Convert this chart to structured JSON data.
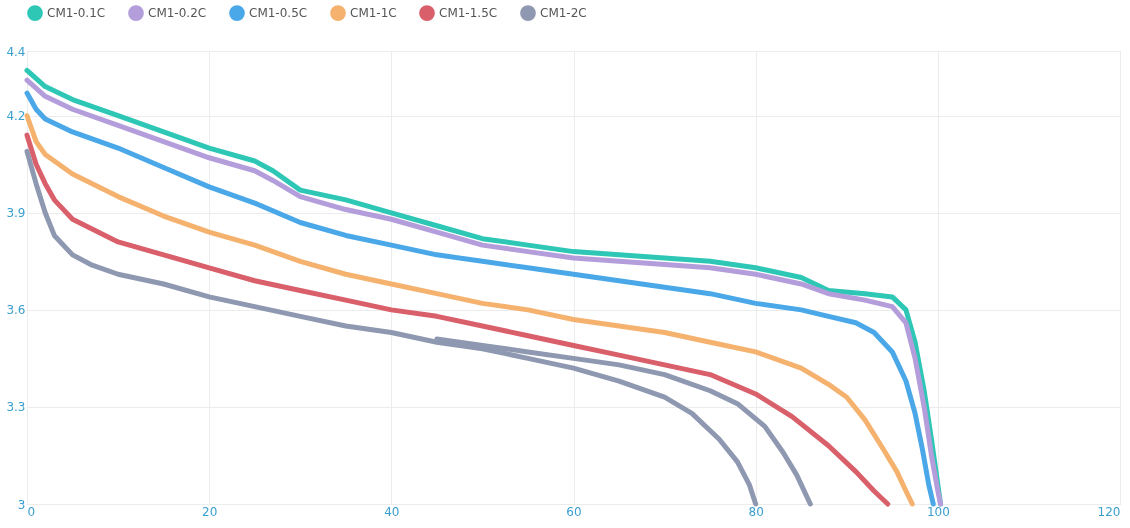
{
  "chart_data": {
    "type": "line",
    "legend": "top",
    "grid": true,
    "marker": "none",
    "line_style": "solid",
    "xlim": [
      0,
      120
    ],
    "xticks": [
      0,
      20,
      40,
      60,
      80,
      100,
      120
    ],
    "ylim": [
      3,
      4.4
    ],
    "yticks": [
      {
        "value": 3,
        "label": "3"
      },
      3.3,
      3.6,
      3.9,
      4.2,
      4.4
    ],
    "series": [
      {
        "name": "CM1-0.1C",
        "color": "#2ec7b6",
        "x": [
          0,
          2,
          5,
          10,
          15,
          20,
          25,
          27,
          30,
          35,
          40,
          45,
          50,
          55,
          60,
          65,
          70,
          75,
          80,
          85,
          88,
          92,
          95,
          96.5,
          97.5,
          98.5,
          99.3,
          100,
          100.3
        ],
        "values": [
          4.34,
          4.29,
          4.25,
          4.2,
          4.15,
          4.1,
          4.06,
          4.03,
          3.97,
          3.94,
          3.9,
          3.86,
          3.82,
          3.8,
          3.78,
          3.77,
          3.76,
          3.75,
          3.73,
          3.7,
          3.66,
          3.65,
          3.64,
          3.6,
          3.5,
          3.35,
          3.2,
          3.06,
          3.0
        ]
      },
      {
        "name": "CM1-0.2C",
        "color": "#b39ddb",
        "x": [
          0,
          2,
          5,
          10,
          15,
          20,
          25,
          27,
          30,
          35,
          40,
          45,
          50,
          55,
          60,
          65,
          70,
          75,
          80,
          85,
          88,
          92,
          95,
          96.5,
          97.5,
          98.5,
          99.3,
          100,
          100.3
        ],
        "values": [
          4.31,
          4.26,
          4.22,
          4.17,
          4.12,
          4.07,
          4.03,
          4.0,
          3.95,
          3.91,
          3.88,
          3.84,
          3.8,
          3.78,
          3.76,
          3.75,
          3.74,
          3.73,
          3.71,
          3.68,
          3.65,
          3.63,
          3.61,
          3.56,
          3.45,
          3.3,
          3.15,
          3.04,
          3.0
        ]
      },
      {
        "name": "CM1-0.5C",
        "color": "#4aa8e8",
        "x": [
          0,
          1,
          2,
          5,
          10,
          15,
          20,
          25,
          30,
          35,
          40,
          45,
          50,
          55,
          60,
          65,
          70,
          75,
          80,
          85,
          88,
          91,
          93,
          95,
          96.5,
          97.5,
          98.3,
          99,
          99.5
        ],
        "values": [
          4.27,
          4.22,
          4.19,
          4.15,
          4.1,
          4.04,
          3.98,
          3.93,
          3.87,
          3.83,
          3.8,
          3.77,
          3.75,
          3.73,
          3.71,
          3.69,
          3.67,
          3.65,
          3.62,
          3.6,
          3.58,
          3.56,
          3.53,
          3.47,
          3.38,
          3.28,
          3.17,
          3.06,
          3.0
        ]
      },
      {
        "name": "CM1-1C",
        "color": "#f5b26f",
        "x": [
          0,
          1,
          2,
          5,
          10,
          15,
          20,
          25,
          30,
          35,
          40,
          45,
          50,
          55,
          60,
          65,
          70,
          75,
          80,
          85,
          88,
          90,
          92,
          94,
          95.5,
          96.5,
          97.2
        ],
        "values": [
          4.2,
          4.12,
          4.08,
          4.02,
          3.95,
          3.89,
          3.84,
          3.8,
          3.75,
          3.71,
          3.68,
          3.65,
          3.62,
          3.6,
          3.57,
          3.55,
          3.53,
          3.5,
          3.47,
          3.42,
          3.37,
          3.33,
          3.26,
          3.17,
          3.1,
          3.04,
          3.0
        ]
      },
      {
        "name": "CM1-1.5C",
        "color": "#d9606b",
        "x": [
          0,
          1,
          2,
          3,
          5,
          10,
          15,
          20,
          25,
          30,
          35,
          40,
          45,
          50,
          55,
          60,
          65,
          70,
          75,
          80,
          84,
          88,
          91,
          93,
          94.5
        ],
        "values": [
          4.14,
          4.05,
          3.99,
          3.94,
          3.88,
          3.81,
          3.77,
          3.73,
          3.69,
          3.66,
          3.63,
          3.6,
          3.58,
          3.55,
          3.52,
          3.49,
          3.46,
          3.43,
          3.4,
          3.34,
          3.27,
          3.18,
          3.1,
          3.04,
          3.0
        ]
      },
      {
        "name": "CM1-2C",
        "color": "#8e98b0",
        "x": [
          0,
          1,
          2,
          3,
          5,
          7,
          10,
          15,
          20,
          25,
          30,
          35,
          40,
          45,
          50,
          55,
          60,
          65,
          70,
          73,
          76,
          78,
          79.3,
          80
        ],
        "values": [
          4.09,
          3.99,
          3.9,
          3.83,
          3.77,
          3.74,
          3.71,
          3.68,
          3.64,
          3.61,
          3.58,
          3.55,
          3.53,
          3.5,
          3.48,
          3.45,
          3.42,
          3.38,
          3.33,
          3.28,
          3.2,
          3.13,
          3.06,
          3.0
        ]
      },
      {
        "color": "#8e98b0",
        "x": [
          45,
          50,
          55,
          60,
          65,
          70,
          75,
          78,
          81,
          83,
          84.5,
          86
        ],
        "values": [
          3.51,
          3.49,
          3.47,
          3.45,
          3.43,
          3.4,
          3.35,
          3.31,
          3.24,
          3.16,
          3.09,
          3.0
        ]
      }
    ]
  }
}
